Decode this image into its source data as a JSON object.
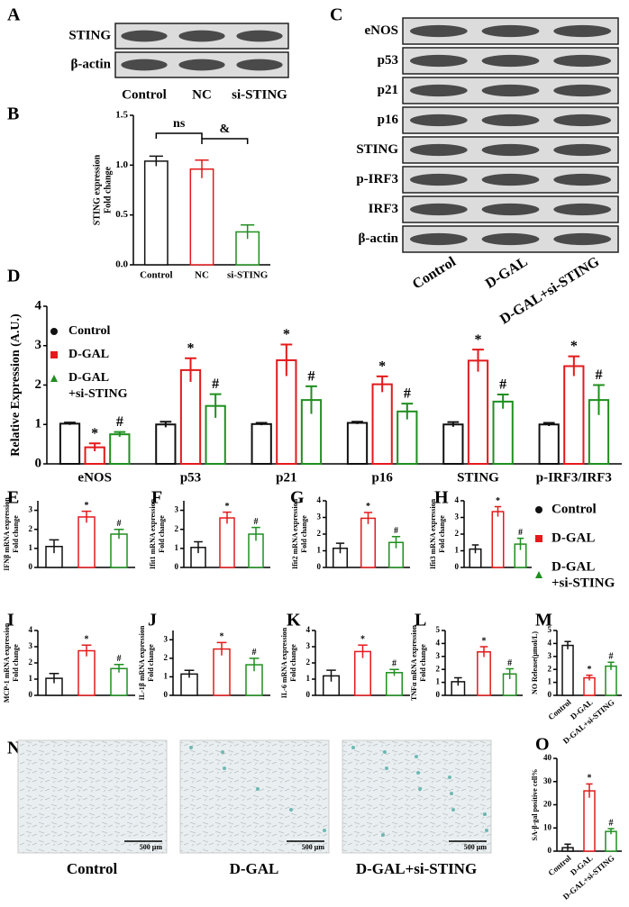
{
  "blot_a": {
    "panel": "A",
    "rows": [
      "STING",
      "β-actin"
    ],
    "lanes": [
      "Control",
      "NC",
      "si-STING"
    ]
  },
  "blot_c": {
    "panel": "C",
    "rows": [
      "eNOS",
      "p53",
      "p21",
      "p16",
      "STING",
      "p-IRF3",
      "IRF3",
      "β-actin"
    ],
    "lanes": [
      "Control",
      "D-GAL",
      "D-GAL+si-STING"
    ]
  },
  "legend_right": {
    "entries": [
      {
        "name": [
          "Control"
        ],
        "color": "#111111"
      },
      {
        "name": [
          "D-GAL"
        ],
        "color": "#e31a1c"
      },
      {
        "name": [
          "D-GAL",
          "+si-STING"
        ],
        "color": "#1f8f1f"
      }
    ]
  },
  "micrographs": {
    "panel": "N",
    "labels": [
      "Control",
      "D-GAL",
      "D-GAL+si-STING"
    ],
    "scale_bar": "500 μm"
  },
  "chart_data": [
    {
      "type": "bar",
      "panel": "B",
      "ylabel": [
        "STING expression",
        "Fold change"
      ],
      "categories": [
        "Control",
        "NC",
        "si-STING"
      ],
      "values": [
        1.04,
        0.96,
        0.33
      ],
      "errors": [
        0.05,
        0.09,
        0.07
      ],
      "colors": [
        "#111111",
        "#e31a1c",
        "#1f8f1f"
      ],
      "bracket_labels": [
        "ns",
        "&"
      ],
      "ylim": [
        0,
        1.5
      ],
      "yticks": [
        {
          "value": 0,
          "label": "0.0"
        },
        {
          "value": 0.5,
          "label": "0.5"
        },
        {
          "value": 1,
          "label": "1.0"
        },
        {
          "value": 1.5,
          "label": "1.5"
        }
      ]
    },
    {
      "type": "bar",
      "panel": "D",
      "ylabel": "Relative Expression (A.U.)",
      "categories": [
        "eNOS",
        "p53",
        "p21",
        "p16",
        "STING",
        "p-IRF3/IRF3"
      ],
      "series": [
        {
          "name": [
            "Control"
          ],
          "color": "#111111",
          "values": [
            1.02,
            1.0,
            1.01,
            1.04,
            1.0,
            1.0
          ],
          "errors": [
            0.03,
            0.07,
            0.03,
            0.03,
            0.06,
            0.04
          ]
        },
        {
          "name": [
            "D-GAL"
          ],
          "color": "#e31a1c",
          "values": [
            0.42,
            2.38,
            2.63,
            2.02,
            2.62,
            2.48
          ],
          "errors": [
            0.1,
            0.3,
            0.4,
            0.2,
            0.28,
            0.25
          ],
          "annotations": [
            "*",
            "*",
            "*",
            "*",
            "*",
            "*"
          ]
        },
        {
          "name": [
            "D-GAL",
            "+si-STING"
          ],
          "color": "#1f8f1f",
          "values": [
            0.75,
            1.47,
            1.62,
            1.33,
            1.58,
            1.62
          ],
          "errors": [
            0.06,
            0.3,
            0.35,
            0.2,
            0.18,
            0.38
          ],
          "annotations": [
            "#",
            "#",
            "#",
            "#",
            "#",
            "#"
          ]
        }
      ],
      "ylim": [
        0,
        4
      ],
      "yticks": [
        0,
        1,
        2,
        3,
        4
      ]
    },
    {
      "type": "bar",
      "panel": "E",
      "ylabel": [
        "IFNβ mRNA expression",
        "Fold change"
      ],
      "categories": [
        null,
        null,
        null
      ],
      "values": [
        1.1,
        2.65,
        1.75
      ],
      "errors": [
        0.35,
        0.3,
        0.25
      ],
      "colors": [
        "#111111",
        "#e31a1c",
        "#1f8f1f"
      ],
      "annotations": [
        null,
        "*",
        "#"
      ],
      "ylim": [
        0,
        3.5
      ],
      "yticks": [
        0,
        1,
        2,
        3
      ]
    },
    {
      "type": "bar",
      "panel": "F",
      "ylabel": [
        "Ifit1 mRNA expression",
        "Fold change"
      ],
      "categories": [
        null,
        null,
        null
      ],
      "values": [
        1.05,
        2.6,
        1.75
      ],
      "errors": [
        0.3,
        0.3,
        0.35
      ],
      "colors": [
        "#111111",
        "#e31a1c",
        "#1f8f1f"
      ],
      "annotations": [
        null,
        "*",
        "#"
      ],
      "ylim": [
        0,
        3.5
      ],
      "yticks": [
        0,
        1,
        2,
        3
      ]
    },
    {
      "type": "bar",
      "panel": "G",
      "ylabel": [
        "Ifit2 mRNA expression",
        "Fold change"
      ],
      "categories": [
        null,
        null,
        null
      ],
      "values": [
        1.15,
        2.95,
        1.5
      ],
      "errors": [
        0.3,
        0.35,
        0.35
      ],
      "colors": [
        "#111111",
        "#e31a1c",
        "#1f8f1f"
      ],
      "annotations": [
        null,
        "*",
        "#"
      ],
      "ylim": [
        0,
        4
      ],
      "yticks": [
        0,
        1,
        2,
        3,
        4
      ]
    },
    {
      "type": "bar",
      "panel": "H",
      "ylabel": [
        "Ifit3 mRNA expression",
        "Fold change"
      ],
      "categories": [
        null,
        null,
        null
      ],
      "values": [
        1.1,
        3.35,
        1.4
      ],
      "errors": [
        0.25,
        0.3,
        0.35
      ],
      "colors": [
        "#111111",
        "#e31a1c",
        "#1f8f1f"
      ],
      "annotations": [
        null,
        "*",
        "#"
      ],
      "ylim": [
        0,
        4
      ],
      "yticks": [
        0,
        1,
        2,
        3,
        4
      ]
    },
    {
      "type": "bar",
      "panel": "I",
      "ylabel": [
        "MCP-1 mRNA expression",
        "Fold change"
      ],
      "categories": [
        null,
        null,
        null
      ],
      "values": [
        1.05,
        2.75,
        1.65
      ],
      "errors": [
        0.3,
        0.35,
        0.25
      ],
      "colors": [
        "#111111",
        "#e31a1c",
        "#1f8f1f"
      ],
      "annotations": [
        null,
        "*",
        "#"
      ],
      "ylim": [
        0,
        4
      ],
      "yticks": [
        0,
        1,
        2,
        3,
        4
      ]
    },
    {
      "type": "bar",
      "panel": "J",
      "ylabel": [
        "IL-1β mRNA expression",
        "Fold change"
      ],
      "categories": [
        null,
        null,
        null
      ],
      "values": [
        1.15,
        2.5,
        1.65
      ],
      "errors": [
        0.2,
        0.35,
        0.35
      ],
      "colors": [
        "#111111",
        "#e31a1c",
        "#1f8f1f"
      ],
      "annotations": [
        null,
        "*",
        "#"
      ],
      "ylim": [
        0,
        3.5
      ],
      "yticks": [
        0,
        1,
        2,
        3
      ]
    },
    {
      "type": "bar",
      "panel": "K",
      "ylabel": [
        "IL-6 mRNA expression",
        "Fold change"
      ],
      "categories": [
        null,
        null,
        null
      ],
      "values": [
        1.2,
        2.7,
        1.4
      ],
      "errors": [
        0.35,
        0.4,
        0.2
      ],
      "colors": [
        "#111111",
        "#e31a1c",
        "#1f8f1f"
      ],
      "annotations": [
        null,
        "*",
        "#"
      ],
      "ylim": [
        0,
        4
      ],
      "yticks": [
        0,
        1,
        2,
        3,
        4
      ]
    },
    {
      "type": "bar",
      "panel": "L",
      "ylabel": [
        "TNFα mRNA expression",
        "Fold change"
      ],
      "categories": [
        null,
        null,
        null
      ],
      "values": [
        1.05,
        3.35,
        1.65
      ],
      "errors": [
        0.3,
        0.4,
        0.4
      ],
      "colors": [
        "#111111",
        "#e31a1c",
        "#1f8f1f"
      ],
      "annotations": [
        null,
        "*",
        "#"
      ],
      "ylim": [
        0,
        5
      ],
      "yticks": [
        0,
        1,
        2,
        3,
        4,
        5
      ]
    },
    {
      "type": "bar",
      "panel": "M",
      "ylabel": "NO Release(μmol/L)",
      "categories": [
        "Control",
        "D-GAL",
        "D-GAL+si-STING"
      ],
      "values": [
        3.85,
        1.35,
        2.25
      ],
      "errors": [
        0.3,
        0.2,
        0.3
      ],
      "colors": [
        "#111111",
        "#e31a1c",
        "#1f8f1f"
      ],
      "annotations": [
        null,
        "*",
        "#"
      ],
      "ylim": [
        0,
        5
      ],
      "yticks": [
        0,
        1,
        2,
        3,
        4,
        5
      ]
    },
    {
      "type": "bar",
      "panel": "O",
      "ylabel": "SA-β-gal positive cell%",
      "categories": [
        "Control",
        "D-GAL",
        "D-GAL+si-STING"
      ],
      "values": [
        1.5,
        26,
        8.5
      ],
      "errors": [
        1.5,
        3,
        1.2
      ],
      "colors": [
        "#111111",
        "#e31a1c",
        "#1f8f1f"
      ],
      "annotations": [
        null,
        "*",
        "#"
      ],
      "ylim": [
        0,
        40
      ],
      "yticks": [
        0,
        10,
        20,
        30,
        40
      ]
    }
  ]
}
